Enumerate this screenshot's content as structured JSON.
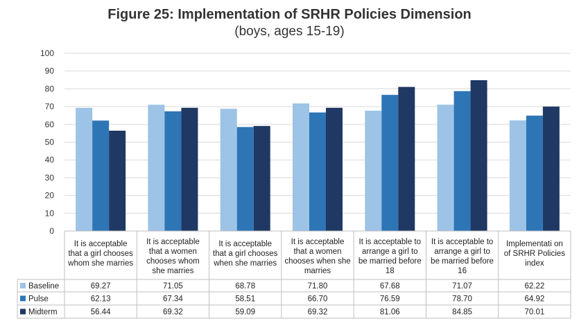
{
  "chart_data": {
    "type": "bar",
    "title": "Figure 25: Implementation of SRHR Policies Dimension",
    "subtitle": "(boys, ages 15-19)",
    "categories": [
      [
        "It is acceptable",
        "that a girl chooses",
        "whom she marries"
      ],
      [
        "It is acceptable",
        "that a women",
        "chooses whom",
        "she marries"
      ],
      [
        "It is acceptable",
        "that a girl chooses",
        "when she marries"
      ],
      [
        "It is acceptable",
        "that a women",
        "chooses when she",
        "marries"
      ],
      [
        "It is acceptable to",
        "arrange a girl to",
        "be married before",
        "18"
      ],
      [
        "It is acceptable to",
        "arrange a girl to",
        "be married before",
        "16"
      ],
      [
        "Implementati on",
        "of SRHR Policies",
        "index"
      ]
    ],
    "series": [
      {
        "name": "Baseline",
        "color": "#9DC3E6",
        "values": [
          69.27,
          71.05,
          68.78,
          71.8,
          67.68,
          71.07,
          62.22
        ],
        "labels": [
          "69.27",
          "71.05",
          "68.78",
          "71.80",
          "67.68",
          "71.07",
          "62.22"
        ]
      },
      {
        "name": "Pulse",
        "color": "#2E75B6",
        "values": [
          62.13,
          67.34,
          58.51,
          66.7,
          76.59,
          78.7,
          64.92
        ],
        "labels": [
          "62.13",
          "67.34",
          "58.51",
          "66.70",
          "76.59",
          "78.70",
          "64.92"
        ]
      },
      {
        "name": "Midterm",
        "color": "#1F3864",
        "values": [
          56.44,
          69.32,
          59.09,
          69.32,
          81.06,
          84.85,
          70.01
        ],
        "labels": [
          "56.44",
          "69.32",
          "59.09",
          "69.32",
          "81.06",
          "84.85",
          "70.01"
        ]
      }
    ],
    "ylim": [
      0,
      100
    ],
    "yticks": [
      "0",
      "10",
      "20",
      "30",
      "40",
      "50",
      "60",
      "70",
      "80",
      "90",
      "100"
    ],
    "ytick_values": [
      0,
      10,
      20,
      30,
      40,
      50,
      60,
      70,
      80,
      90,
      100
    ],
    "gridlines": true,
    "legend": "data-table",
    "xlabel": "",
    "ylabel": ""
  }
}
